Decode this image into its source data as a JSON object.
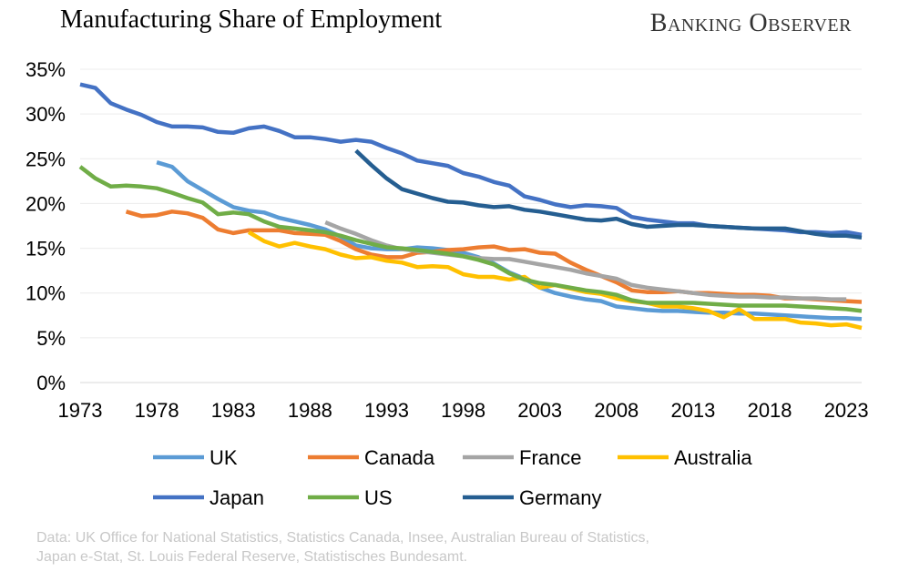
{
  "header": {
    "title": "Manufacturing Share of Employment",
    "brand": "Banking Observer"
  },
  "footer": {
    "line1": "Data: UK Office for National Statistics, Statistics Canada, Insee, Australian Bureau of Statistics,",
    "line2": "Japan e-Stat, St. Louis Federal Reserve, Statistisches Bundesamt."
  },
  "chart_data": {
    "type": "line",
    "title": "Manufacturing Share of Employment",
    "xlabel": "",
    "ylabel": "",
    "xlim": [
      1973,
      2024
    ],
    "ylim": [
      0,
      35
    ],
    "x_ticks": [
      1973,
      1978,
      1983,
      1988,
      1993,
      1998,
      2003,
      2008,
      2013,
      2018,
      2023
    ],
    "y_ticks": [
      "0%",
      "5%",
      "10%",
      "15%",
      "20%",
      "25%",
      "30%",
      "35%"
    ],
    "grid": true,
    "legend_position": "bottom",
    "series": [
      {
        "name": "UK",
        "color": "#5B9BD5",
        "x": [
          1978,
          1979,
          1980,
          1981,
          1982,
          1983,
          1984,
          1985,
          1986,
          1987,
          1988,
          1989,
          1990,
          1991,
          1992,
          1993,
          1994,
          1995,
          1996,
          1997,
          1998,
          1999,
          2000,
          2001,
          2002,
          2003,
          2004,
          2005,
          2006,
          2007,
          2008,
          2009,
          2010,
          2011,
          2012,
          2013,
          2014,
          2015,
          2016,
          2017,
          2018,
          2019,
          2020,
          2021,
          2022,
          2023,
          2024
        ],
        "y": [
          24.6,
          24.1,
          22.5,
          21.5,
          20.5,
          19.6,
          19.2,
          19.0,
          18.4,
          18.0,
          17.6,
          17.1,
          16.3,
          15.3,
          15.0,
          14.9,
          14.9,
          15.1,
          15.0,
          14.8,
          14.5,
          14.0,
          13.3,
          12.3,
          11.6,
          10.6,
          10.0,
          9.6,
          9.3,
          9.1,
          8.5,
          8.3,
          8.1,
          8.0,
          8.0,
          7.9,
          7.8,
          7.8,
          7.7,
          7.7,
          7.6,
          7.5,
          7.4,
          7.3,
          7.2,
          7.2,
          7.1
        ]
      },
      {
        "name": "Canada",
        "color": "#ED7D31",
        "x": [
          1976,
          1977,
          1978,
          1979,
          1980,
          1981,
          1982,
          1983,
          1984,
          1985,
          1986,
          1987,
          1988,
          1989,
          1990,
          1991,
          1992,
          1993,
          1994,
          1995,
          1996,
          1997,
          1998,
          1999,
          2000,
          2001,
          2002,
          2003,
          2004,
          2005,
          2006,
          2007,
          2008,
          2009,
          2010,
          2011,
          2012,
          2013,
          2014,
          2015,
          2016,
          2017,
          2018,
          2019,
          2020,
          2021,
          2022,
          2023,
          2024
        ],
        "y": [
          19.1,
          18.6,
          18.7,
          19.1,
          18.9,
          18.4,
          17.1,
          16.7,
          17.0,
          17.0,
          17.0,
          16.7,
          16.6,
          16.5,
          15.8,
          14.9,
          14.3,
          14.0,
          14.0,
          14.5,
          14.6,
          14.8,
          14.9,
          15.1,
          15.2,
          14.8,
          14.9,
          14.5,
          14.4,
          13.4,
          12.6,
          11.9,
          11.2,
          10.3,
          10.1,
          10.1,
          10.2,
          10.0,
          10.0,
          9.9,
          9.8,
          9.8,
          9.7,
          9.4,
          9.4,
          9.3,
          9.2,
          9.1,
          9.0
        ]
      },
      {
        "name": "France",
        "color": "#A5A5A5",
        "x": [
          1989,
          1990,
          1991,
          1992,
          1993,
          1994,
          1995,
          1996,
          1997,
          1998,
          1999,
          2000,
          2001,
          2002,
          2003,
          2004,
          2005,
          2006,
          2007,
          2008,
          2009,
          2010,
          2011,
          2012,
          2013,
          2014,
          2015,
          2016,
          2017,
          2018,
          2019,
          2020,
          2021,
          2022,
          2023
        ],
        "y": [
          17.9,
          17.2,
          16.6,
          15.9,
          15.3,
          14.9,
          14.7,
          14.5,
          14.3,
          14.1,
          13.9,
          13.8,
          13.8,
          13.5,
          13.2,
          12.9,
          12.6,
          12.2,
          11.9,
          11.6,
          10.9,
          10.6,
          10.4,
          10.2,
          10.0,
          9.8,
          9.7,
          9.6,
          9.6,
          9.5,
          9.5,
          9.4,
          9.4,
          9.3,
          9.3
        ]
      },
      {
        "name": "Australia",
        "color": "#FFC000",
        "x": [
          1984,
          1985,
          1986,
          1987,
          1988,
          1989,
          1990,
          1991,
          1992,
          1993,
          1994,
          1995,
          1996,
          1997,
          1998,
          1999,
          2000,
          2001,
          2002,
          2003,
          2004,
          2005,
          2006,
          2007,
          2008,
          2009,
          2010,
          2011,
          2012,
          2013,
          2014,
          2015,
          2016,
          2017,
          2018,
          2019,
          2020,
          2021,
          2022,
          2023,
          2024
        ],
        "y": [
          16.8,
          15.8,
          15.2,
          15.6,
          15.2,
          14.9,
          14.3,
          13.9,
          14.0,
          13.6,
          13.4,
          12.9,
          13.0,
          12.9,
          12.1,
          11.8,
          11.8,
          11.5,
          11.8,
          10.6,
          10.9,
          10.5,
          10.1,
          9.9,
          9.4,
          9.1,
          8.9,
          8.5,
          8.5,
          8.3,
          8.0,
          7.3,
          8.2,
          7.1,
          7.1,
          7.1,
          6.7,
          6.6,
          6.4,
          6.5,
          6.1
        ]
      },
      {
        "name": "Japan",
        "color": "#4472C4",
        "x": [
          1973,
          1974,
          1975,
          1976,
          1977,
          1978,
          1979,
          1980,
          1981,
          1982,
          1983,
          1984,
          1985,
          1986,
          1987,
          1988,
          1989,
          1990,
          1991,
          1992,
          1993,
          1994,
          1995,
          1996,
          1997,
          1998,
          1999,
          2000,
          2001,
          2002,
          2003,
          2004,
          2005,
          2006,
          2007,
          2008,
          2009,
          2010,
          2011,
          2012,
          2013,
          2014,
          2015,
          2016,
          2017,
          2018,
          2019,
          2020,
          2021,
          2022,
          2023,
          2024
        ],
        "y": [
          33.3,
          32.9,
          31.2,
          30.5,
          29.9,
          29.1,
          28.6,
          28.6,
          28.5,
          28.0,
          27.9,
          28.4,
          28.6,
          28.1,
          27.4,
          27.4,
          27.2,
          26.9,
          27.1,
          26.9,
          26.2,
          25.6,
          24.8,
          24.5,
          24.2,
          23.4,
          23.0,
          22.4,
          22.0,
          20.8,
          20.4,
          19.9,
          19.6,
          19.8,
          19.7,
          19.5,
          18.5,
          18.2,
          18.0,
          17.8,
          17.8,
          17.5,
          17.4,
          17.3,
          17.2,
          17.1,
          17.0,
          16.8,
          16.8,
          16.7,
          16.8,
          16.5
        ]
      },
      {
        "name": "US",
        "color": "#70AD47",
        "x": [
          1973,
          1974,
          1975,
          1976,
          1977,
          1978,
          1979,
          1980,
          1981,
          1982,
          1983,
          1984,
          1985,
          1986,
          1987,
          1988,
          1989,
          1990,
          1991,
          1992,
          1993,
          1994,
          1995,
          1996,
          1997,
          1998,
          1999,
          2000,
          2001,
          2002,
          2003,
          2004,
          2005,
          2006,
          2007,
          2008,
          2009,
          2010,
          2011,
          2012,
          2013,
          2014,
          2015,
          2016,
          2017,
          2018,
          2019,
          2020,
          2021,
          2022,
          2023,
          2024
        ],
        "y": [
          24.1,
          22.8,
          21.9,
          22.0,
          21.9,
          21.7,
          21.2,
          20.6,
          20.1,
          18.8,
          19.0,
          18.8,
          18.0,
          17.4,
          17.2,
          17.0,
          16.8,
          16.4,
          15.9,
          15.5,
          15.1,
          15.0,
          14.8,
          14.6,
          14.4,
          14.1,
          13.7,
          13.2,
          12.2,
          11.5,
          11.1,
          10.9,
          10.6,
          10.3,
          10.1,
          9.8,
          9.2,
          8.9,
          8.9,
          8.9,
          8.9,
          8.8,
          8.7,
          8.6,
          8.6,
          8.6,
          8.6,
          8.5,
          8.4,
          8.3,
          8.2,
          8.0
        ]
      },
      {
        "name": "Germany",
        "color": "#255E91",
        "x": [
          1991,
          1992,
          1993,
          1994,
          1995,
          1996,
          1997,
          1998,
          1999,
          2000,
          2001,
          2002,
          2003,
          2004,
          2005,
          2006,
          2007,
          2008,
          2009,
          2010,
          2011,
          2012,
          2013,
          2014,
          2015,
          2016,
          2017,
          2018,
          2019,
          2020,
          2021,
          2022,
          2023,
          2024
        ],
        "y": [
          25.9,
          24.3,
          22.8,
          21.6,
          21.1,
          20.6,
          20.2,
          20.1,
          19.8,
          19.6,
          19.7,
          19.3,
          19.1,
          18.8,
          18.5,
          18.2,
          18.1,
          18.3,
          17.7,
          17.4,
          17.5,
          17.6,
          17.6,
          17.5,
          17.4,
          17.3,
          17.2,
          17.2,
          17.2,
          16.9,
          16.6,
          16.4,
          16.4,
          16.2
        ]
      }
    ]
  }
}
